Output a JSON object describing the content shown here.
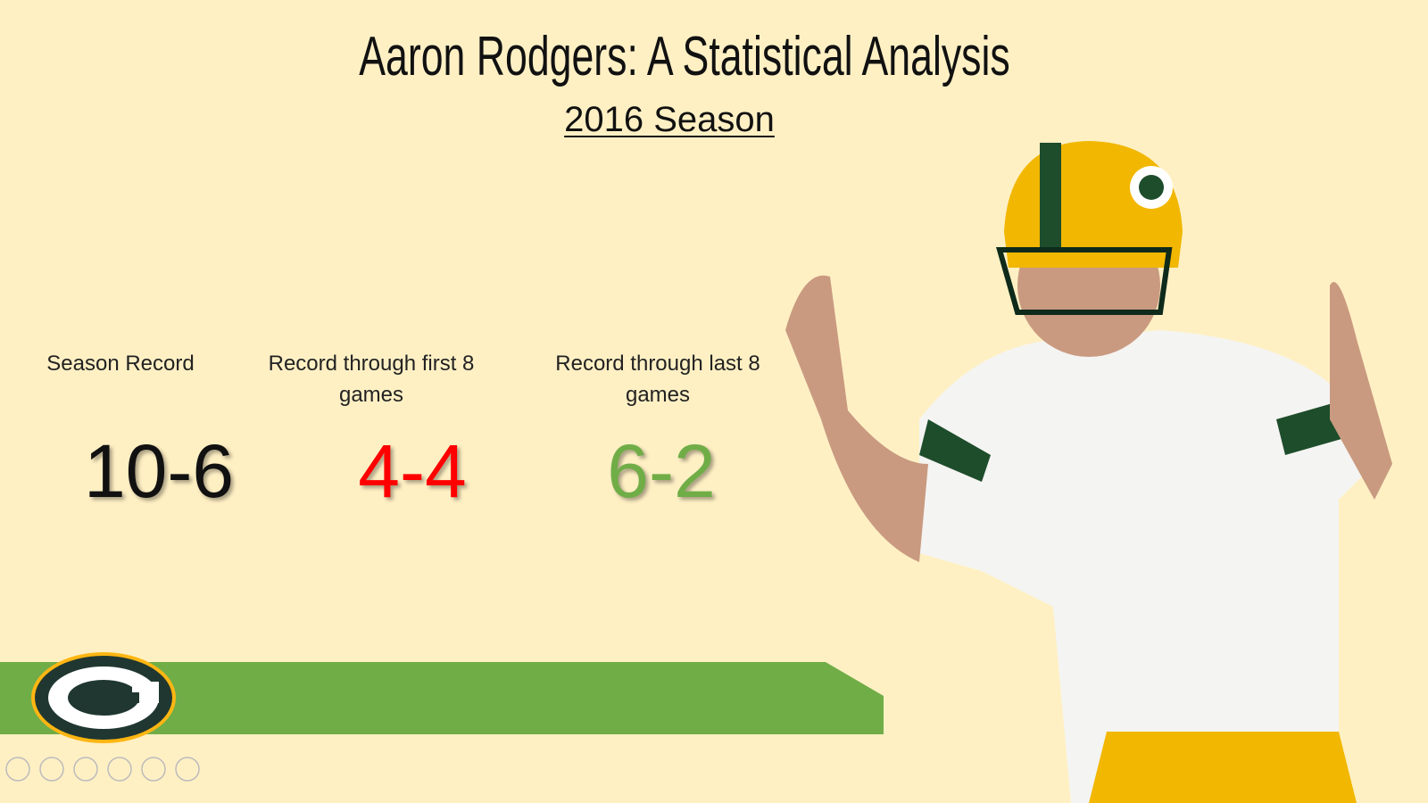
{
  "header": {
    "title": "Aaron Rodgers: A Statistical Analysis",
    "subtitle": "2016 Season"
  },
  "stats": [
    {
      "label": "Season Record",
      "value": "10-6",
      "color": "#111111"
    },
    {
      "label": "Record through first 8 games",
      "value": "4-4",
      "color": "#ff0000"
    },
    {
      "label": "Record through last 8 games",
      "value": "6-2",
      "color": "#70ad47"
    }
  ]
}
